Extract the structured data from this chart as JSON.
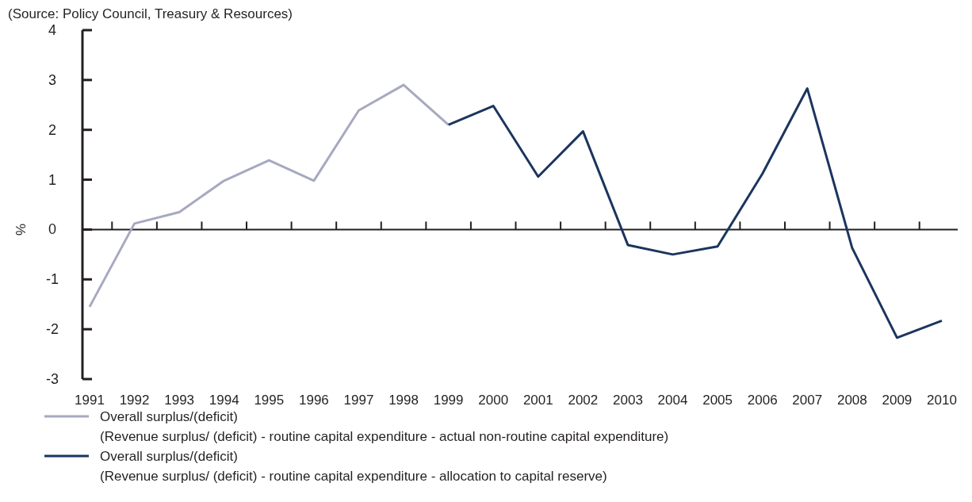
{
  "chart_data": {
    "type": "line",
    "ylabel": "%",
    "annotations": [
      "(Source: Policy Council, Treasury & Resources)"
    ],
    "categories": [
      "1991",
      "1992",
      "1993",
      "1994",
      "1995",
      "1996",
      "1997",
      "1998",
      "1999",
      "2000",
      "2001",
      "2002",
      "2003",
      "2004",
      "2005",
      "2006",
      "2007",
      "2008",
      "2009",
      "2010"
    ],
    "ylim": [
      -3,
      4
    ],
    "yticks": [
      -3,
      -2,
      -1,
      0,
      1,
      2,
      3,
      4
    ],
    "legend": "bottom",
    "series": [
      {
        "name": "Overall surplus/(deficit)\n(Revenue surplus/ (deficit) - routine capital expenditure - actual non-routine capital expenditure)",
        "color": "#a7a9c0",
        "values": [
          -1.55,
          0.12,
          0.35,
          0.98,
          1.39,
          0.98,
          2.39,
          2.9,
          2.1,
          null,
          null,
          null,
          null,
          null,
          null,
          null,
          null,
          null,
          null,
          null
        ]
      },
      {
        "name": "Overall surplus/(deficit)\n(Revenue surplus/ (deficit) - routine capital expenditure - allocation to capital reserve)",
        "color": "#1b355e",
        "values": [
          null,
          null,
          null,
          null,
          null,
          null,
          null,
          null,
          2.1,
          2.48,
          1.06,
          1.97,
          -0.31,
          -0.5,
          -0.34,
          1.12,
          2.83,
          -0.37,
          -2.17,
          -1.83
        ]
      }
    ]
  }
}
